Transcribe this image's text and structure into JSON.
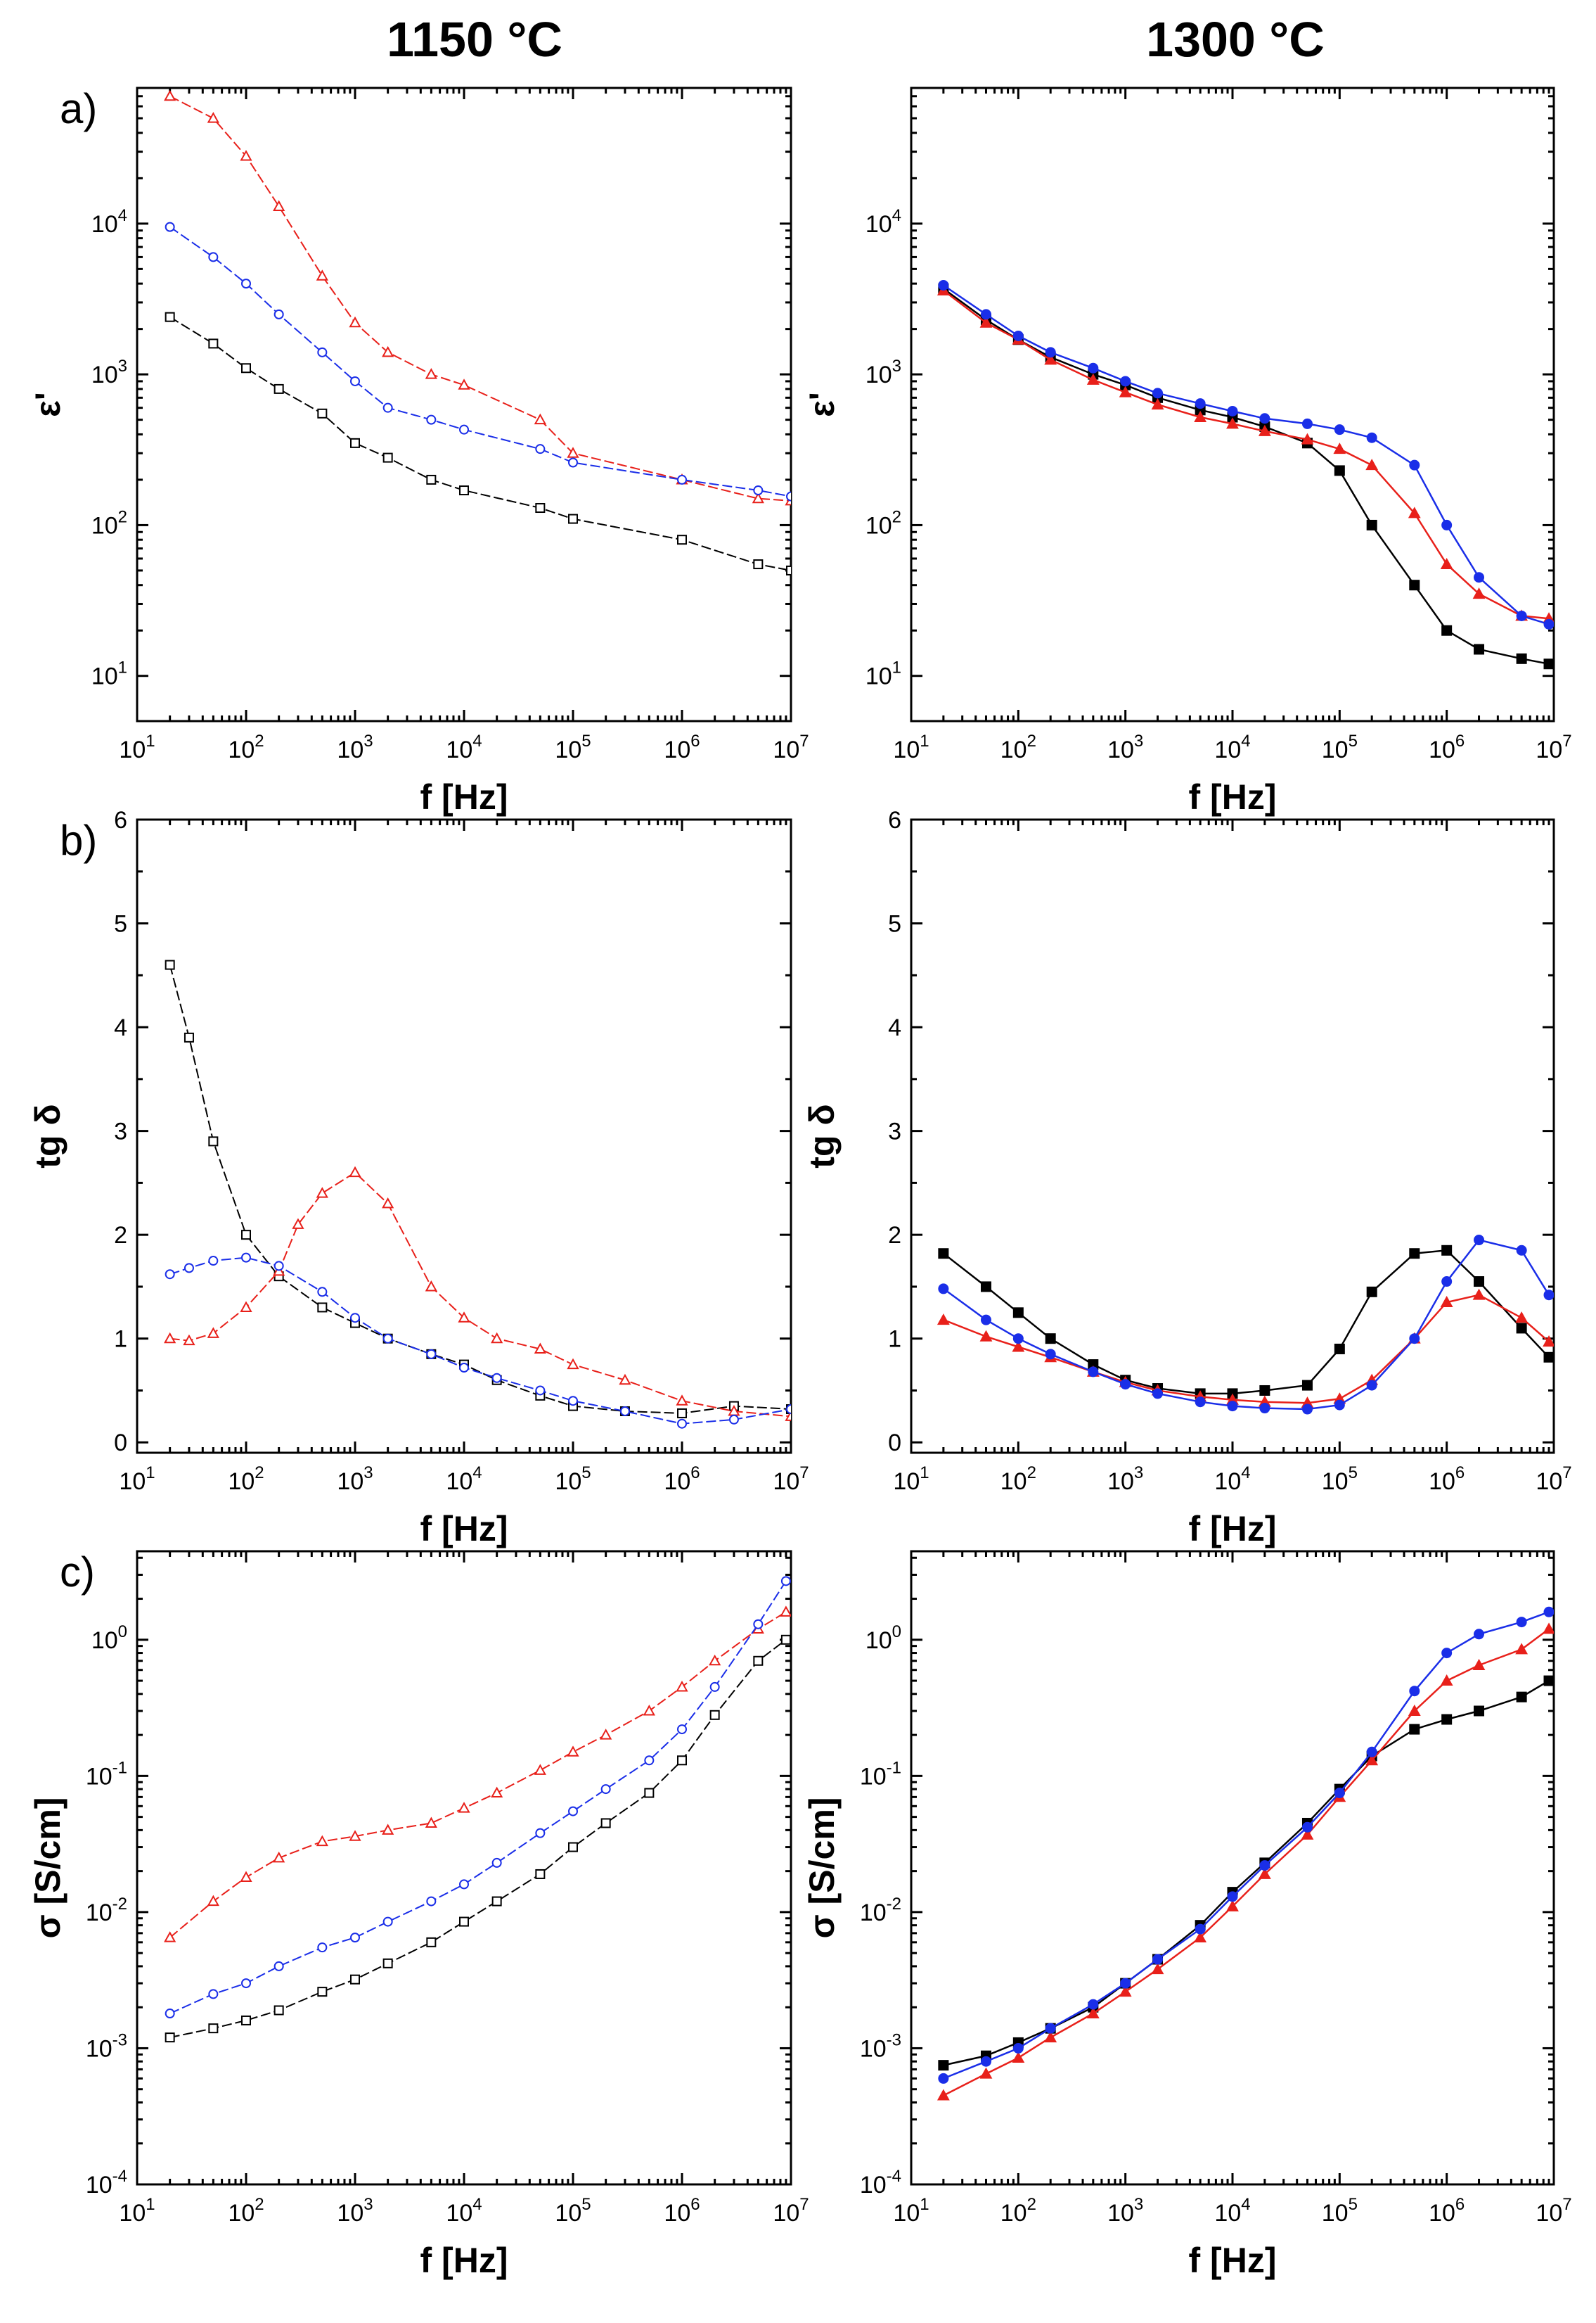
{
  "figure": {
    "column_titles": [
      "1150 °C",
      "1300 °C"
    ],
    "row_labels": [
      "a)",
      "b)",
      "c)"
    ]
  },
  "colors": {
    "black": "#000000",
    "red": "#e8201a",
    "blue": "#1a2ee8"
  },
  "chart_data": [
    {
      "id": "a-1150",
      "type": "line",
      "row": 0,
      "col": 0,
      "xscale": "log",
      "yscale": "log",
      "xlim_exp": [
        1,
        7
      ],
      "ylim_exp": [
        0.7,
        4.9
      ],
      "xlabel": "f [Hz]",
      "ylabel": "ε'",
      "panel_label": "a)",
      "marker_style": "open",
      "x_ticks": [
        "1",
        "2",
        "3",
        "4",
        "5",
        "6",
        "7"
      ],
      "y_ticks": [
        "1",
        "2",
        "3",
        "4"
      ],
      "series": [
        {
          "color": "red",
          "marker": "triangle",
          "x": [
            20,
            50,
            100,
            200,
            500,
            1000,
            2000,
            5000,
            10000,
            50000,
            100000,
            1000000,
            5000000,
            10000000
          ],
          "y": [
            70000,
            50000,
            28000,
            13000,
            4500,
            2200,
            1400,
            1000,
            850,
            500,
            300,
            200,
            150,
            145
          ]
        },
        {
          "color": "blue",
          "marker": "circle",
          "x": [
            20,
            50,
            100,
            200,
            500,
            1000,
            2000,
            5000,
            10000,
            50000,
            100000,
            1000000,
            5000000,
            10000000
          ],
          "y": [
            9500,
            6000,
            4000,
            2500,
            1400,
            900,
            600,
            500,
            430,
            320,
            260,
            200,
            170,
            155
          ]
        },
        {
          "color": "black",
          "marker": "square",
          "x": [
            20,
            50,
            100,
            200,
            500,
            1000,
            2000,
            5000,
            10000,
            50000,
            100000,
            1000000,
            5000000,
            10000000
          ],
          "y": [
            2400,
            1600,
            1100,
            800,
            550,
            350,
            280,
            200,
            170,
            130,
            110,
            80,
            55,
            50
          ]
        }
      ]
    },
    {
      "id": "a-1300",
      "type": "line",
      "row": 0,
      "col": 1,
      "xscale": "log",
      "yscale": "log",
      "xlim_exp": [
        1,
        7
      ],
      "ylim_exp": [
        0.7,
        4.9
      ],
      "xlabel": "f [Hz]",
      "ylabel": "ε'",
      "panel_label": "",
      "marker_style": "filled",
      "x_ticks": [
        "1",
        "2",
        "3",
        "4",
        "5",
        "6",
        "7"
      ],
      "y_ticks": [
        "1",
        "2",
        "3",
        "4"
      ],
      "series": [
        {
          "color": "black",
          "marker": "square",
          "x": [
            20,
            50,
            100,
            200,
            500,
            1000,
            2000,
            5000,
            10000,
            20000,
            50000,
            100000,
            200000,
            500000,
            1000000,
            2000000,
            5000000,
            9000000
          ],
          "y": [
            3700,
            2300,
            1700,
            1300,
            1000,
            850,
            700,
            580,
            520,
            450,
            350,
            230,
            100,
            40,
            20,
            15,
            13,
            12
          ]
        },
        {
          "color": "red",
          "marker": "triangle",
          "x": [
            20,
            50,
            100,
            200,
            500,
            1000,
            2000,
            5000,
            10000,
            20000,
            50000,
            100000,
            200000,
            500000,
            1000000,
            2000000,
            5000000,
            9000000
          ],
          "y": [
            3600,
            2200,
            1700,
            1250,
            920,
            760,
            630,
            520,
            470,
            420,
            370,
            320,
            250,
            120,
            55,
            35,
            25,
            24
          ]
        },
        {
          "color": "blue",
          "marker": "circle",
          "x": [
            20,
            50,
            100,
            200,
            500,
            1000,
            2000,
            5000,
            10000,
            20000,
            50000,
            100000,
            200000,
            500000,
            1000000,
            2000000,
            5000000,
            9000000
          ],
          "y": [
            3900,
            2500,
            1800,
            1400,
            1100,
            900,
            750,
            640,
            570,
            510,
            470,
            430,
            380,
            250,
            100,
            45,
            25,
            22
          ]
        }
      ]
    },
    {
      "id": "b-1150",
      "type": "line",
      "row": 1,
      "col": 0,
      "xscale": "log",
      "yscale": "linear",
      "xlim_exp": [
        1,
        7
      ],
      "ylim": [
        -0.1,
        6
      ],
      "xlabel": "f [Hz]",
      "ylabel": "tg δ",
      "panel_label": "b)",
      "marker_style": "open",
      "x_ticks": [
        "1",
        "2",
        "3",
        "4",
        "5",
        "6",
        "7"
      ],
      "y_ticks": [
        "0",
        "1",
        "2",
        "3",
        "4",
        "5",
        "6"
      ],
      "series": [
        {
          "color": "black",
          "marker": "square",
          "x": [
            20,
            30,
            50,
            100,
            200,
            500,
            1000,
            2000,
            5000,
            10000,
            20000,
            50000,
            100000,
            300000,
            1000000,
            3000000,
            10000000
          ],
          "y": [
            4.6,
            3.9,
            2.9,
            2.0,
            1.6,
            1.3,
            1.15,
            1.0,
            0.85,
            0.75,
            0.6,
            0.45,
            0.35,
            0.3,
            0.28,
            0.35,
            0.32
          ]
        },
        {
          "color": "red",
          "marker": "triangle",
          "x": [
            20,
            30,
            50,
            100,
            200,
            300,
            500,
            1000,
            2000,
            5000,
            10000,
            20000,
            50000,
            100000,
            300000,
            1000000,
            3000000,
            10000000
          ],
          "y": [
            1.0,
            0.98,
            1.05,
            1.3,
            1.65,
            2.1,
            2.4,
            2.6,
            2.3,
            1.5,
            1.2,
            1.0,
            0.9,
            0.75,
            0.6,
            0.4,
            0.3,
            0.25
          ]
        },
        {
          "color": "blue",
          "marker": "circle",
          "x": [
            20,
            30,
            50,
            100,
            200,
            500,
            1000,
            2000,
            5000,
            10000,
            20000,
            50000,
            100000,
            300000,
            1000000,
            3000000,
            10000000
          ],
          "y": [
            1.62,
            1.68,
            1.75,
            1.78,
            1.7,
            1.45,
            1.2,
            1.0,
            0.85,
            0.72,
            0.62,
            0.5,
            0.4,
            0.3,
            0.18,
            0.22,
            0.32
          ]
        }
      ]
    },
    {
      "id": "b-1300",
      "type": "line",
      "row": 1,
      "col": 1,
      "xscale": "log",
      "yscale": "linear",
      "xlim_exp": [
        1,
        7
      ],
      "ylim": [
        -0.1,
        6
      ],
      "xlabel": "f [Hz]",
      "ylabel": "tg δ",
      "panel_label": "",
      "marker_style": "filled",
      "x_ticks": [
        "1",
        "2",
        "3",
        "4",
        "5",
        "6",
        "7"
      ],
      "y_ticks": [
        "0",
        "1",
        "2",
        "3",
        "4",
        "5",
        "6"
      ],
      "series": [
        {
          "color": "black",
          "marker": "square",
          "x": [
            20,
            50,
            100,
            200,
            500,
            1000,
            2000,
            5000,
            10000,
            20000,
            50000,
            100000,
            200000,
            500000,
            1000000,
            2000000,
            5000000,
            9000000
          ],
          "y": [
            1.82,
            1.5,
            1.25,
            1.0,
            0.75,
            0.6,
            0.52,
            0.47,
            0.47,
            0.5,
            0.55,
            0.9,
            1.45,
            1.82,
            1.85,
            1.55,
            1.1,
            0.82
          ]
        },
        {
          "color": "red",
          "marker": "triangle",
          "x": [
            20,
            50,
            100,
            200,
            500,
            1000,
            2000,
            5000,
            10000,
            20000,
            50000,
            100000,
            200000,
            500000,
            1000000,
            2000000,
            5000000,
            9000000
          ],
          "y": [
            1.18,
            1.02,
            0.92,
            0.82,
            0.68,
            0.58,
            0.5,
            0.44,
            0.41,
            0.39,
            0.38,
            0.42,
            0.6,
            1.0,
            1.35,
            1.42,
            1.2,
            0.97
          ]
        },
        {
          "color": "blue",
          "marker": "circle",
          "x": [
            20,
            50,
            100,
            200,
            500,
            1000,
            2000,
            5000,
            10000,
            20000,
            50000,
            100000,
            200000,
            500000,
            1000000,
            2000000,
            5000000,
            9000000
          ],
          "y": [
            1.48,
            1.18,
            1.0,
            0.85,
            0.68,
            0.56,
            0.47,
            0.39,
            0.35,
            0.33,
            0.32,
            0.36,
            0.55,
            1.0,
            1.55,
            1.95,
            1.85,
            1.42
          ]
        }
      ]
    },
    {
      "id": "c-1150",
      "type": "line",
      "row": 2,
      "col": 0,
      "xscale": "log",
      "yscale": "log",
      "xlim_exp": [
        1,
        7
      ],
      "ylim_exp": [
        -4,
        0.65
      ],
      "xlabel": "f [Hz]",
      "ylabel": "σ [S/cm]",
      "panel_label": "c)",
      "marker_style": "open",
      "x_ticks": [
        "1",
        "2",
        "3",
        "4",
        "5",
        "6",
        "7"
      ],
      "y_ticks": [
        "-4",
        "-3",
        "-2",
        "-1",
        "0"
      ],
      "series": [
        {
          "color": "red",
          "marker": "triangle",
          "x": [
            20,
            50,
            100,
            200,
            500,
            1000,
            2000,
            5000,
            10000,
            20000,
            50000,
            100000,
            200000,
            500000,
            1000000,
            2000000,
            5000000,
            9000000
          ],
          "y": [
            0.0065,
            0.012,
            0.018,
            0.025,
            0.033,
            0.036,
            0.04,
            0.045,
            0.058,
            0.075,
            0.11,
            0.15,
            0.2,
            0.3,
            0.45,
            0.7,
            1.2,
            1.6
          ]
        },
        {
          "color": "blue",
          "marker": "circle",
          "x": [
            20,
            50,
            100,
            200,
            500,
            1000,
            2000,
            5000,
            10000,
            20000,
            50000,
            100000,
            200000,
            500000,
            1000000,
            2000000,
            5000000,
            9000000
          ],
          "y": [
            0.0018,
            0.0025,
            0.003,
            0.004,
            0.0055,
            0.0065,
            0.0085,
            0.012,
            0.016,
            0.023,
            0.038,
            0.055,
            0.08,
            0.13,
            0.22,
            0.45,
            1.3,
            2.7
          ]
        },
        {
          "color": "black",
          "marker": "square",
          "x": [
            20,
            50,
            100,
            200,
            500,
            1000,
            2000,
            5000,
            10000,
            20000,
            50000,
            100000,
            200000,
            500000,
            1000000,
            2000000,
            5000000,
            9000000
          ],
          "y": [
            0.0012,
            0.0014,
            0.0016,
            0.0019,
            0.0026,
            0.0032,
            0.0042,
            0.006,
            0.0085,
            0.012,
            0.019,
            0.03,
            0.045,
            0.075,
            0.13,
            0.28,
            0.7,
            1.0
          ]
        }
      ]
    },
    {
      "id": "c-1300",
      "type": "line",
      "row": 2,
      "col": 1,
      "xscale": "log",
      "yscale": "log",
      "xlim_exp": [
        1,
        7
      ],
      "ylim_exp": [
        -4,
        0.65
      ],
      "xlabel": "f [Hz]",
      "ylabel": "σ [S/cm]",
      "panel_label": "",
      "marker_style": "filled",
      "x_ticks": [
        "1",
        "2",
        "3",
        "4",
        "5",
        "6",
        "7"
      ],
      "y_ticks": [
        "-4",
        "-3",
        "-2",
        "-1",
        "0"
      ],
      "series": [
        {
          "color": "black",
          "marker": "square",
          "x": [
            20,
            50,
            100,
            200,
            500,
            1000,
            2000,
            5000,
            10000,
            20000,
            50000,
            100000,
            200000,
            500000,
            1000000,
            2000000,
            5000000,
            9000000
          ],
          "y": [
            0.00075,
            0.00088,
            0.0011,
            0.0014,
            0.002,
            0.003,
            0.0045,
            0.008,
            0.014,
            0.023,
            0.045,
            0.08,
            0.14,
            0.22,
            0.26,
            0.3,
            0.38,
            0.5
          ]
        },
        {
          "color": "red",
          "marker": "triangle",
          "x": [
            20,
            50,
            100,
            200,
            500,
            1000,
            2000,
            5000,
            10000,
            20000,
            50000,
            100000,
            200000,
            500000,
            1000000,
            2000000,
            5000000,
            9000000
          ],
          "y": [
            0.00045,
            0.00065,
            0.00085,
            0.0012,
            0.0018,
            0.0026,
            0.0038,
            0.0065,
            0.011,
            0.019,
            0.037,
            0.07,
            0.13,
            0.3,
            0.5,
            0.65,
            0.85,
            1.2
          ]
        },
        {
          "color": "blue",
          "marker": "circle",
          "x": [
            20,
            50,
            100,
            200,
            500,
            1000,
            2000,
            5000,
            10000,
            20000,
            50000,
            100000,
            200000,
            500000,
            1000000,
            2000000,
            5000000,
            9000000
          ],
          "y": [
            0.0006,
            0.0008,
            0.001,
            0.0014,
            0.0021,
            0.003,
            0.0045,
            0.0075,
            0.013,
            0.022,
            0.042,
            0.075,
            0.15,
            0.42,
            0.8,
            1.1,
            1.35,
            1.6
          ]
        }
      ]
    }
  ]
}
